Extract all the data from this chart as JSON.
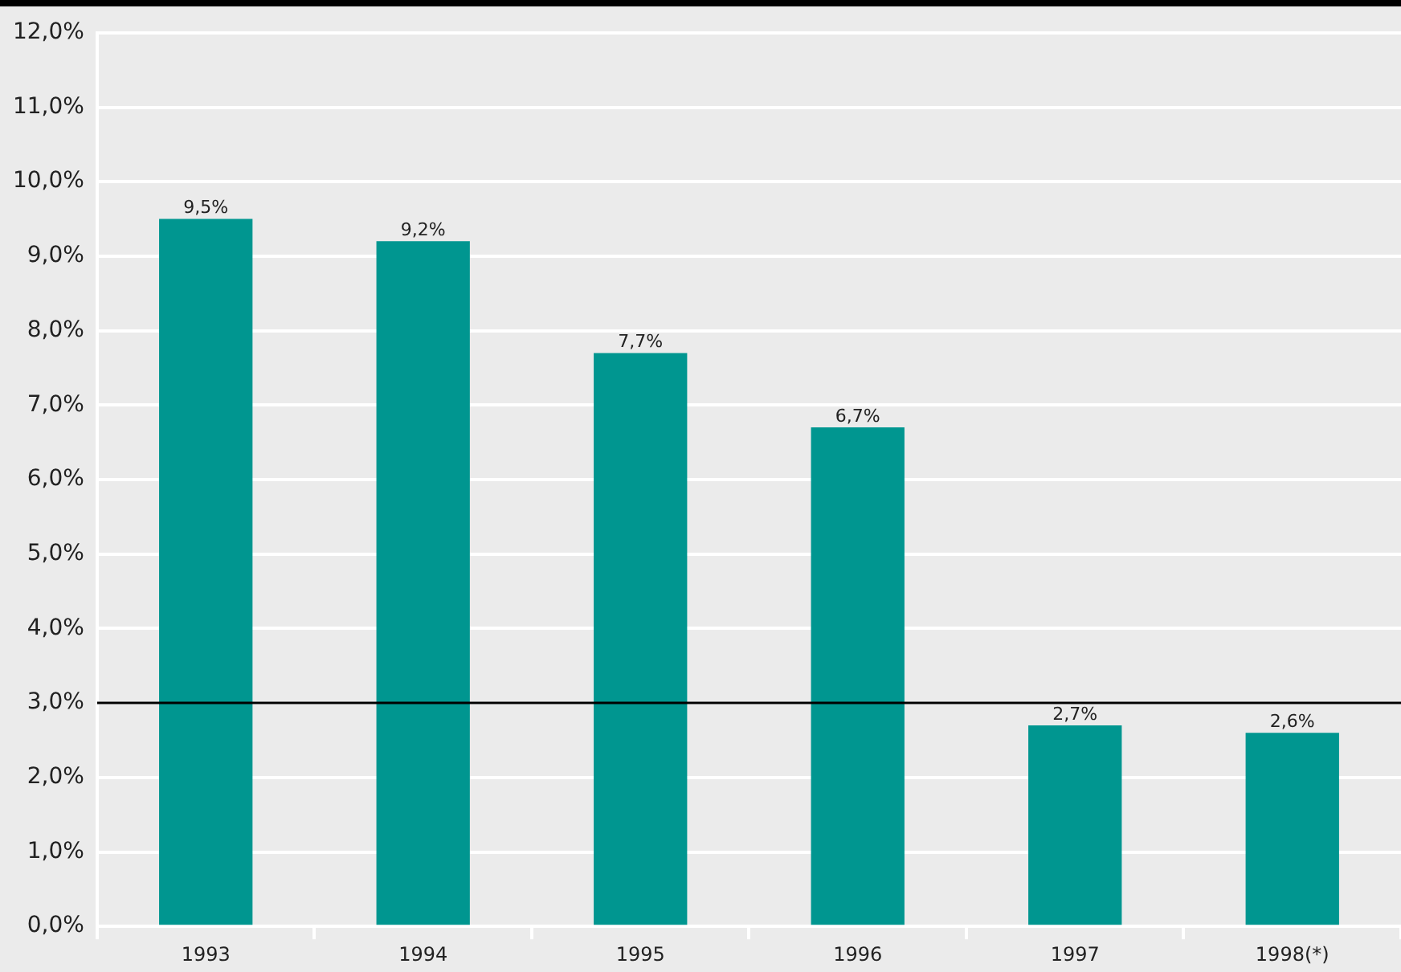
{
  "chart_data": {
    "type": "bar",
    "categories": [
      "1993",
      "1994",
      "1995",
      "1996",
      "1997",
      "1998(*)"
    ],
    "values": [
      9.5,
      9.2,
      7.7,
      6.7,
      2.7,
      2.6
    ],
    "color": "#009690",
    "value_labels": [
      "9,5%",
      "9,2%",
      "7,7%",
      "6,7%",
      "2,7%",
      "2,6%"
    ],
    "ylim": [
      0,
      12
    ],
    "yticks": [
      {
        "value": 0,
        "label": "0,0%"
      },
      {
        "value": 1,
        "label": "1,0%"
      },
      {
        "value": 2,
        "label": "2,0%"
      },
      {
        "value": 3,
        "label": "3,0%"
      },
      {
        "value": 4,
        "label": "4,0%"
      },
      {
        "value": 5,
        "label": "5,0%"
      },
      {
        "value": 6,
        "label": "6,0%"
      },
      {
        "value": 7,
        "label": "7,0%"
      },
      {
        "value": 8,
        "label": "8,0%"
      },
      {
        "value": 9,
        "label": "9,0%"
      },
      {
        "value": 10,
        "label": "10,0%"
      },
      {
        "value": 11,
        "label": "11,0%"
      },
      {
        "value": 12,
        "label": "12,0%"
      }
    ],
    "ref_lines": [
      {
        "axis": "y",
        "value": 3,
        "color": "#000000"
      }
    ],
    "grid": "y",
    "legend": false
  }
}
